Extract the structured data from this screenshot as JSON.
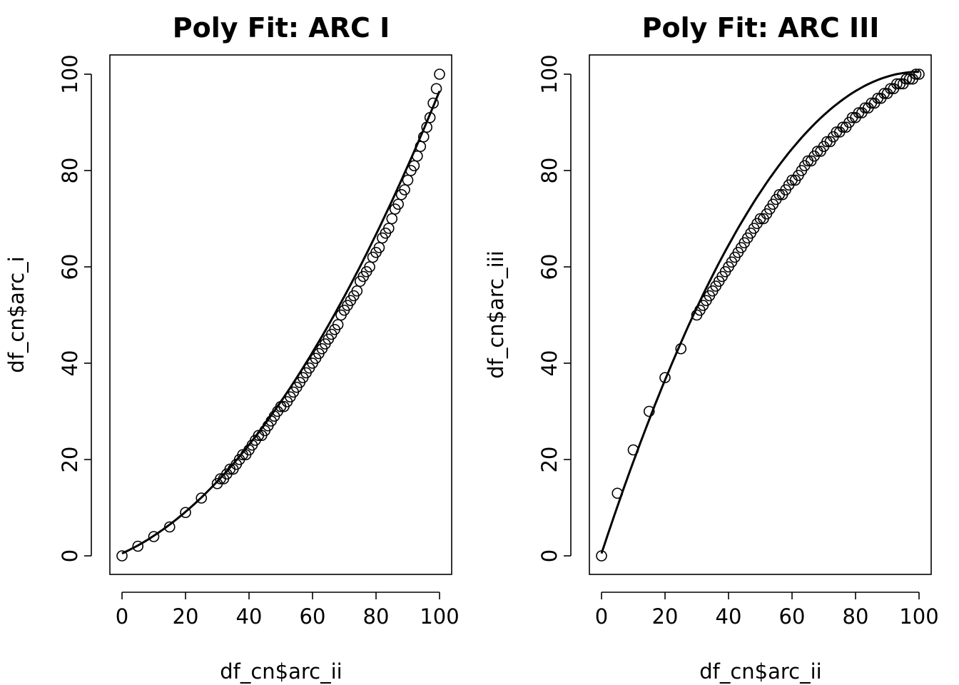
{
  "chart_data": [
    {
      "type": "scatter",
      "title": "Poly Fit: ARC I",
      "xlabel": "df_cn$arc_ii",
      "ylabel": "df_cn$arc_i",
      "xlim": [
        0,
        100
      ],
      "ylim": [
        0,
        100
      ],
      "xticks": [
        0,
        20,
        40,
        60,
        80,
        100
      ],
      "yticks": [
        0,
        20,
        40,
        60,
        80,
        100
      ],
      "fit": {
        "type": "polynomial",
        "coefficients": [
          0.5,
          0.3,
          0.0066
        ]
      },
      "points": [
        [
          0,
          0
        ],
        [
          5,
          2
        ],
        [
          10,
          4
        ],
        [
          15,
          6
        ],
        [
          20,
          9
        ],
        [
          25,
          12
        ],
        [
          30,
          15
        ],
        [
          31,
          16
        ],
        [
          32,
          16
        ],
        [
          33,
          17
        ],
        [
          34,
          18
        ],
        [
          35,
          18
        ],
        [
          36,
          19
        ],
        [
          37,
          20
        ],
        [
          38,
          21
        ],
        [
          39,
          21
        ],
        [
          40,
          22
        ],
        [
          41,
          23
        ],
        [
          42,
          24
        ],
        [
          43,
          25
        ],
        [
          44,
          25
        ],
        [
          45,
          26
        ],
        [
          46,
          27
        ],
        [
          47,
          28
        ],
        [
          48,
          29
        ],
        [
          49,
          30
        ],
        [
          50,
          31
        ],
        [
          51,
          31
        ],
        [
          52,
          32
        ],
        [
          53,
          33
        ],
        [
          54,
          34
        ],
        [
          55,
          35
        ],
        [
          56,
          36
        ],
        [
          57,
          37
        ],
        [
          58,
          38
        ],
        [
          59,
          39
        ],
        [
          60,
          40
        ],
        [
          61,
          41
        ],
        [
          62,
          42
        ],
        [
          63,
          43
        ],
        [
          64,
          44
        ],
        [
          65,
          45
        ],
        [
          66,
          46
        ],
        [
          67,
          47
        ],
        [
          68,
          48
        ],
        [
          69,
          50
        ],
        [
          70,
          51
        ],
        [
          71,
          52
        ],
        [
          72,
          53
        ],
        [
          73,
          54
        ],
        [
          74,
          55
        ],
        [
          75,
          57
        ],
        [
          76,
          58
        ],
        [
          77,
          59
        ],
        [
          78,
          60
        ],
        [
          79,
          62
        ],
        [
          80,
          63
        ],
        [
          81,
          64
        ],
        [
          82,
          66
        ],
        [
          83,
          67
        ],
        [
          84,
          68
        ],
        [
          85,
          70
        ],
        [
          86,
          72
        ],
        [
          87,
          73
        ],
        [
          88,
          75
        ],
        [
          89,
          76
        ],
        [
          90,
          78
        ],
        [
          91,
          80
        ],
        [
          92,
          81
        ],
        [
          93,
          83
        ],
        [
          94,
          85
        ],
        [
          95,
          87
        ],
        [
          96,
          89
        ],
        [
          97,
          91
        ],
        [
          98,
          94
        ],
        [
          99,
          97
        ],
        [
          100,
          100
        ]
      ]
    },
    {
      "type": "scatter",
      "title": "Poly Fit: ARC III",
      "xlabel": "df_cn$arc_ii",
      "ylabel": "df_cn$arc_iii",
      "xlim": [
        0,
        100
      ],
      "ylim": [
        0,
        100
      ],
      "xticks": [
        0,
        20,
        40,
        60,
        80,
        100
      ],
      "yticks": [
        0,
        20,
        40,
        60,
        80,
        100
      ],
      "fit": {
        "type": "polynomial",
        "coefficients": [
          0.5,
          2.0,
          -0.01
        ]
      },
      "points": [
        [
          0,
          0
        ],
        [
          5,
          13
        ],
        [
          10,
          22
        ],
        [
          15,
          30
        ],
        [
          20,
          37
        ],
        [
          25,
          43
        ],
        [
          30,
          50
        ],
        [
          31,
          51
        ],
        [
          32,
          52
        ],
        [
          33,
          53
        ],
        [
          34,
          54
        ],
        [
          35,
          55
        ],
        [
          36,
          56
        ],
        [
          37,
          57
        ],
        [
          38,
          58
        ],
        [
          39,
          59
        ],
        [
          40,
          60
        ],
        [
          41,
          61
        ],
        [
          42,
          62
        ],
        [
          43,
          63
        ],
        [
          44,
          64
        ],
        [
          45,
          65
        ],
        [
          46,
          66
        ],
        [
          47,
          67
        ],
        [
          48,
          68
        ],
        [
          49,
          69
        ],
        [
          50,
          70
        ],
        [
          51,
          70
        ],
        [
          52,
          71
        ],
        [
          53,
          72
        ],
        [
          54,
          73
        ],
        [
          55,
          74
        ],
        [
          56,
          75
        ],
        [
          57,
          75
        ],
        [
          58,
          76
        ],
        [
          59,
          77
        ],
        [
          60,
          78
        ],
        [
          61,
          78
        ],
        [
          62,
          79
        ],
        [
          63,
          80
        ],
        [
          64,
          81
        ],
        [
          65,
          82
        ],
        [
          66,
          82
        ],
        [
          67,
          83
        ],
        [
          68,
          84
        ],
        [
          69,
          84
        ],
        [
          70,
          85
        ],
        [
          71,
          86
        ],
        [
          72,
          86
        ],
        [
          73,
          87
        ],
        [
          74,
          88
        ],
        [
          75,
          88
        ],
        [
          76,
          89
        ],
        [
          77,
          89
        ],
        [
          78,
          90
        ],
        [
          79,
          91
        ],
        [
          80,
          91
        ],
        [
          81,
          92
        ],
        [
          82,
          92
        ],
        [
          83,
          93
        ],
        [
          84,
          93
        ],
        [
          85,
          94
        ],
        [
          86,
          94
        ],
        [
          87,
          95
        ],
        [
          88,
          95
        ],
        [
          89,
          96
        ],
        [
          90,
          96
        ],
        [
          91,
          97
        ],
        [
          92,
          97
        ],
        [
          93,
          98
        ],
        [
          94,
          98
        ],
        [
          95,
          98
        ],
        [
          96,
          99
        ],
        [
          97,
          99
        ],
        [
          98,
          99
        ],
        [
          99,
          100
        ],
        [
          100,
          100
        ]
      ]
    }
  ]
}
